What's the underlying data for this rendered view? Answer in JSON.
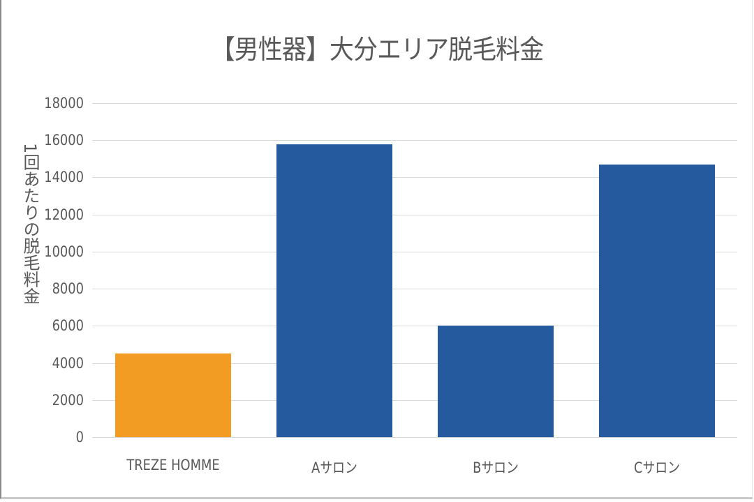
{
  "chart_data": {
    "type": "bar",
    "title": "【男性器】大分エリア脱毛料金",
    "xlabel": "",
    "ylabel": "1回あたりの脱毛料金",
    "categories": [
      "TREZE HOMME",
      "Aサロン",
      "Bサロン",
      "Cサロン"
    ],
    "values": [
      4500,
      15800,
      6000,
      14700
    ],
    "colors": [
      "#F39C24",
      "#265A9E",
      "#265A9E",
      "#265A9E"
    ],
    "ylim": [
      0,
      18000
    ],
    "yticks": [
      "0",
      "2000",
      "4000",
      "6000",
      "8000",
      "10000",
      "12000",
      "14000",
      "16000",
      "18000"
    ],
    "grid": true,
    "legend": null
  }
}
